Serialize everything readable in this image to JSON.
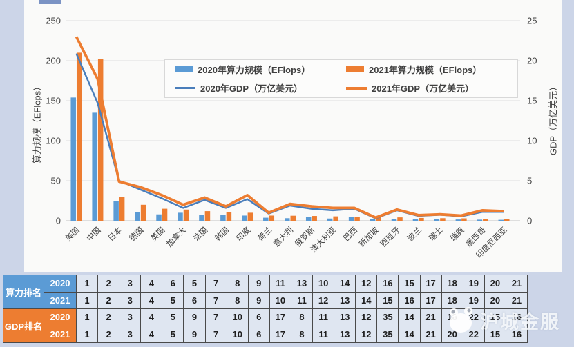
{
  "watermark": {
    "text": "沪城金服"
  },
  "chart_data": {
    "type": "bar+line",
    "title": "",
    "categories": [
      "美国",
      "中国",
      "日本",
      "德国",
      "英国",
      "加拿大",
      "法国",
      "韩国",
      "印度",
      "荷兰",
      "意大利",
      "俄罗斯",
      "澳大利亚",
      "巴西",
      "新加坡",
      "西班牙",
      "波兰",
      "瑞士",
      "瑞典",
      "墨西哥",
      "印度尼西亚"
    ],
    "left_axis": {
      "title": "算力规模（EFlops）",
      "min": 0,
      "max": 250,
      "step": 50,
      "ticks": [
        0,
        50,
        100,
        150,
        200,
        250
      ]
    },
    "right_axis": {
      "title": "GDP（万亿美元）",
      "min": 0,
      "max": 25,
      "step": 5,
      "ticks": [
        0,
        5,
        10,
        15,
        20,
        25
      ]
    },
    "grid": true,
    "legend_position": "top-center",
    "bar_series": [
      {
        "name": "2020年算力规模（EFlops）",
        "color": "#5B9BD5",
        "values": [
          154,
          135,
          25,
          11,
          8,
          10,
          7.5,
          7,
          6.5,
          3.8,
          3.2,
          5,
          2.8,
          4.5,
          2.2,
          2.5,
          2,
          1.8,
          1.6,
          1.4,
          1.2
        ]
      },
      {
        "name": "2021年算力规模（EFlops）",
        "color": "#ED7D31",
        "values": [
          210,
          202,
          30,
          20,
          15,
          14,
          12,
          11,
          10,
          6.5,
          6.3,
          6,
          5.5,
          5,
          4.5,
          4.2,
          3.5,
          3.2,
          3,
          2.5,
          2
        ]
      }
    ],
    "line_series": [
      {
        "name": "2020年GDP（万亿美元）",
        "color": "#4A7EBB",
        "width": 2.5,
        "values": [
          20.9,
          14.7,
          5.0,
          3.9,
          2.8,
          1.6,
          2.6,
          1.6,
          2.7,
          0.9,
          1.9,
          1.5,
          1.3,
          1.5,
          0.3,
          1.3,
          0.6,
          0.75,
          0.55,
          1.1,
          1.1
        ]
      },
      {
        "name": "2021年GDP（万亿美元）",
        "color": "#ED7D31",
        "width": 3.8,
        "values": [
          23.0,
          17.7,
          4.9,
          4.2,
          3.2,
          2.0,
          2.9,
          1.8,
          3.2,
          1.0,
          2.1,
          1.8,
          1.6,
          1.6,
          0.4,
          1.4,
          0.7,
          0.8,
          0.65,
          1.3,
          1.2
        ]
      }
    ]
  },
  "table": {
    "row_groups": [
      {
        "label": "算力排名",
        "color": "#5B9BD5",
        "rows": [
          {
            "year": "2020",
            "values": [
              1,
              2,
              3,
              4,
              6,
              5,
              7,
              8,
              9,
              11,
              13,
              10,
              14,
              12,
              16,
              15,
              17,
              18,
              19,
              20,
              21
            ]
          },
          {
            "year": "2021",
            "values": [
              1,
              2,
              3,
              4,
              5,
              6,
              7,
              8,
              9,
              10,
              11,
              12,
              13,
              14,
              15,
              16,
              17,
              18,
              19,
              20,
              21
            ]
          }
        ]
      },
      {
        "label": "GDP排名",
        "color": "#ED7D31",
        "rows": [
          {
            "year": "2020",
            "values": [
              1,
              2,
              3,
              4,
              5,
              9,
              7,
              10,
              6,
              17,
              8,
              11,
              13,
              12,
              35,
              14,
              21,
              18,
              22,
              15,
              16
            ]
          },
          {
            "year": "2021",
            "values": [
              1,
              2,
              3,
              4,
              5,
              9,
              7,
              10,
              6,
              17,
              8,
              11,
              13,
              12,
              35,
              14,
              21,
              20,
              22,
              15,
              16
            ]
          }
        ]
      }
    ]
  }
}
